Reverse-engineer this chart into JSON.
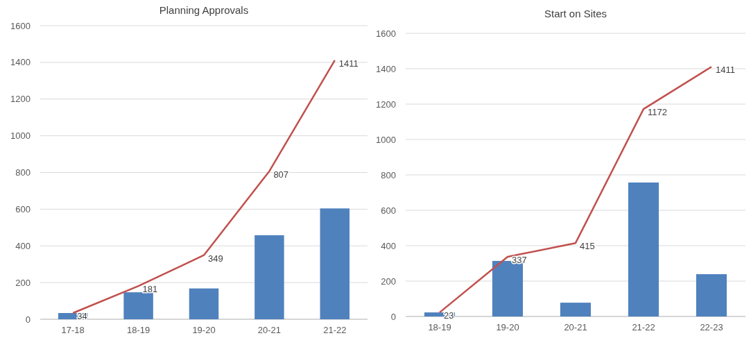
{
  "chart_data": [
    {
      "type": "bar",
      "title": "Planning Approvals",
      "categories": [
        "17-18",
        "18-19",
        "19-20",
        "20-21",
        "21-22"
      ],
      "ylim": [
        0,
        1600
      ],
      "yticks": [
        0,
        200,
        400,
        600,
        800,
        1000,
        1200,
        1400,
        1600
      ],
      "grid": "y",
      "series": [
        {
          "color": "#4f81bd",
          "values": [
            34,
            147,
            168,
            458,
            604
          ]
        },
        {
          "type": "line",
          "color": "#c0504d",
          "values": [
            34,
            181,
            349,
            807,
            1411
          ],
          "value_labels": [
            "34",
            "181",
            "349",
            "807",
            "1411"
          ]
        }
      ]
    },
    {
      "type": "bar",
      "title": "Start on Sites",
      "categories": [
        "18-19",
        "19-20",
        "20-21",
        "21-22",
        "22-23"
      ],
      "ylim": [
        0,
        1600
      ],
      "yticks": [
        0,
        200,
        400,
        600,
        800,
        1000,
        1200,
        1400,
        1600
      ],
      "grid": "y",
      "series": [
        {
          "color": "#4f81bd",
          "values": [
            23,
            314,
            78,
            757,
            239
          ]
        },
        {
          "type": "line",
          "color": "#c0504d",
          "values": [
            23,
            337,
            415,
            1172,
            1411
          ],
          "value_labels": [
            "23",
            "337",
            "415",
            "1172",
            "1411"
          ]
        }
      ]
    }
  ]
}
